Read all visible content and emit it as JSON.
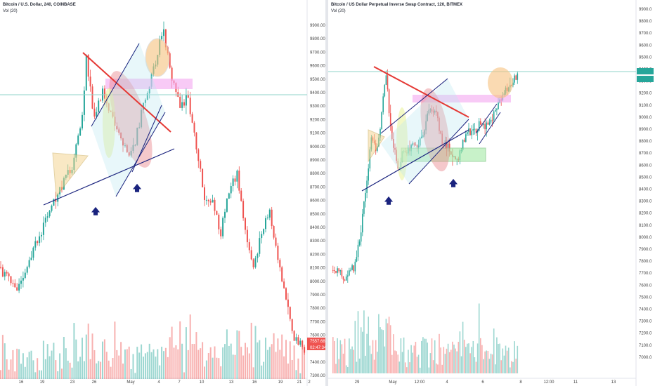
{
  "left": {
    "title": "Bitcoin / U.S. Dollar, 240, COINBASE",
    "volume_label": "Vol (20)",
    "y_ticks": [
      "9900.00",
      "9800.00",
      "9700.00",
      "9600.00",
      "9500.00",
      "9400.00",
      "9300.00",
      "9200.00",
      "9100.00",
      "9000.00",
      "8900.00",
      "8800.00",
      "8700.00",
      "8600.00",
      "8500.00",
      "8400.00",
      "8300.00",
      "8200.00",
      "8100.00",
      "8000.00",
      "7900.00",
      "7800.00",
      "7700.00",
      "7600.00",
      "7500.00",
      "7400.00",
      "7300.00"
    ],
    "x_ticks": [
      "16",
      "19",
      "23",
      "26",
      "May",
      "4",
      "7",
      "10",
      "13",
      "16",
      "19",
      "21",
      "2"
    ],
    "price_badge": "7557.68",
    "time_badge": "02:47:34",
    "colors": {
      "up": "#26a69a",
      "down": "#ef5350"
    }
  },
  "right": {
    "title": "Bitcoin / US Dollar Perpetual Inverse Swap Contract, 120, BITMEX",
    "volume_label": "Vol (20)",
    "y_ticks": [
      "9900.0",
      "9800.0",
      "9700.0",
      "9600.0",
      "9500.0",
      "9400.0",
      "9300.0",
      "9200.0",
      "9100.0",
      "9000.0",
      "8900.0",
      "8800.0",
      "8700.0",
      "8600.0",
      "8500.0",
      "8400.0",
      "8300.0",
      "8200.0",
      "8100.0",
      "8000.0",
      "7900.0",
      "7800.0",
      "7700.0",
      "7600.0",
      "7500.0",
      "7400.0",
      "7300.0",
      "7200.0",
      "7100.0",
      "7000.0"
    ],
    "x_ticks": [
      "29",
      "May",
      "12:00",
      "4",
      "6",
      "8",
      "12:00",
      "11",
      "13"
    ],
    "colors": {
      "up": "#26a69a",
      "down": "#ef5350",
      "badge": "#26a69a"
    }
  }
}
